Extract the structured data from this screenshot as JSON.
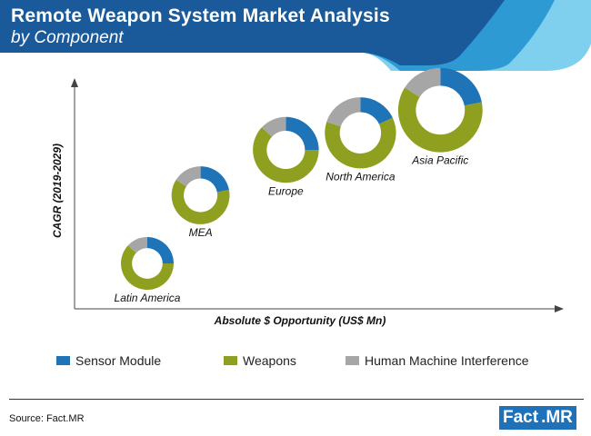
{
  "header": {
    "title": "Remote Weapon System Market Analysis",
    "subtitle": "by Component",
    "colors": {
      "dark": "#1a5a9a",
      "mid": "#2d9ad3",
      "light": "#7ed0ee"
    }
  },
  "chart_data": {
    "type": "donut-bubble",
    "ylabel": "CAGR (2019-2029)",
    "xlabel": "Absolute $ Opportunity (US$ Mn)",
    "legend_position": "bottom",
    "grid": false,
    "components": [
      {
        "name": "Sensor Module",
        "color": "#1f73b7"
      },
      {
        "name": "Weapons",
        "color": "#8fa020"
      },
      {
        "name": "Human Machine Interference",
        "color": "#a6a6a6"
      }
    ],
    "regions": [
      {
        "label": "Latin America",
        "x": 1.0,
        "y": 1.0,
        "size": 1.0,
        "shares": [
          0.25,
          0.62,
          0.13
        ]
      },
      {
        "label": "MEA",
        "x": 2.0,
        "y": 2.2,
        "size": 1.1,
        "shares": [
          0.22,
          0.62,
          0.16
        ]
      },
      {
        "label": "Europe",
        "x": 3.6,
        "y": 3.0,
        "size": 1.25,
        "shares": [
          0.25,
          0.62,
          0.13
        ]
      },
      {
        "label": "North America",
        "x": 5.0,
        "y": 3.3,
        "size": 1.35,
        "shares": [
          0.18,
          0.62,
          0.2
        ]
      },
      {
        "label": "Asia Pacific",
        "x": 6.5,
        "y": 3.7,
        "size": 1.6,
        "shares": [
          0.22,
          0.62,
          0.16
        ]
      }
    ]
  },
  "legend": {
    "items": [
      {
        "label": "Sensor Module",
        "color": "#1f73b7"
      },
      {
        "label": "Weapons",
        "color": "#8fa020"
      },
      {
        "label": "Human Machine Interference",
        "color": "#a6a6a6"
      }
    ]
  },
  "footer": {
    "source": "Source: Fact.MR",
    "logo_fact": "Fact",
    "logo_dot": ".",
    "logo_mr": "MR"
  }
}
